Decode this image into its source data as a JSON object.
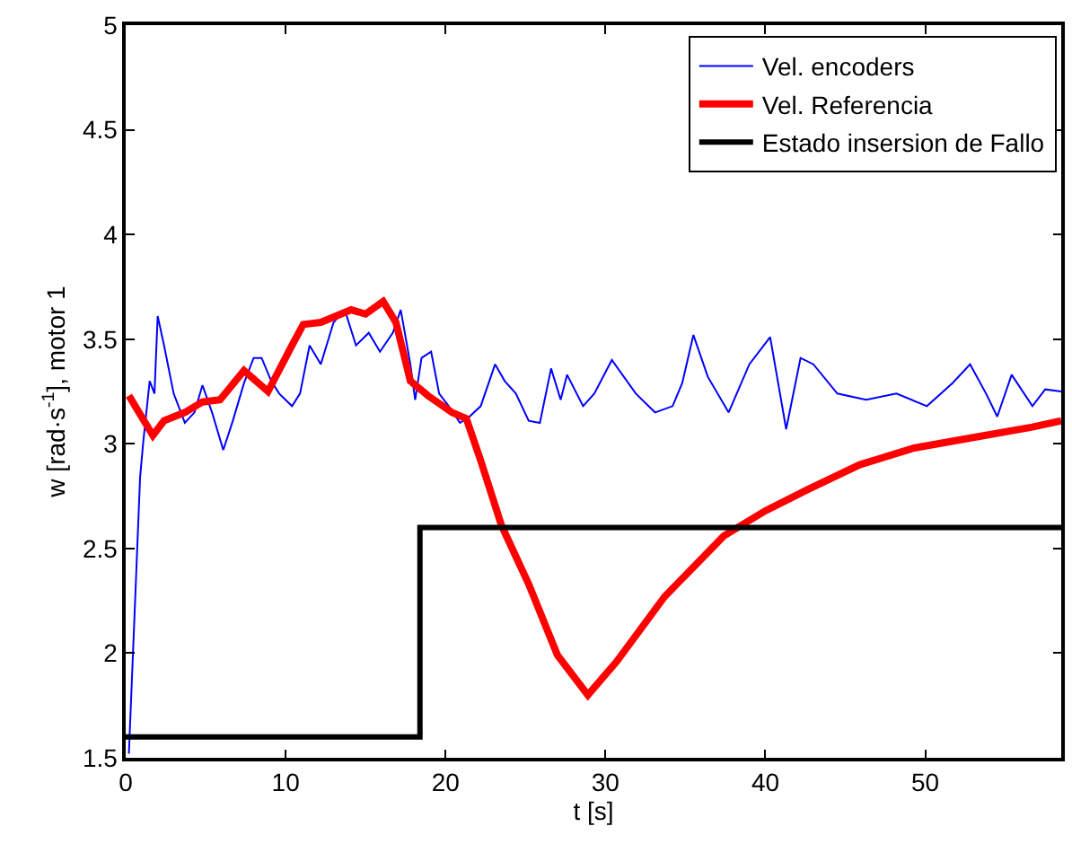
{
  "chart_data": {
    "type": "line",
    "xlabel": "t [s]",
    "ylabel": "w [rad·s$^{-1}$], motor 1",
    "xlim": [
      0,
      58.5
    ],
    "ylim": [
      1.5,
      5
    ],
    "xticks": [
      0,
      10,
      20,
      30,
      40,
      50
    ],
    "yticks": [
      1.5,
      2,
      2.5,
      3,
      3.5,
      4,
      4.5,
      5
    ],
    "legend": "top right",
    "marker": "none",
    "line_style": "solid",
    "series": [
      {
        "name": "Vel. encoders",
        "color": "#0000ff",
        "x": [
          0.2,
          0.6,
          0.9,
          1.1,
          1.5,
          1.8,
          2.0,
          2.4,
          3.0,
          3.7,
          4.3,
          4.8,
          5.4,
          6.1,
          6.7,
          7.4,
          8.0,
          8.5,
          9.1,
          9.6,
          10.4,
          10.9,
          11.5,
          12.2,
          13.0,
          13.7,
          14.4,
          15.2,
          15.9,
          16.7,
          17.2,
          17.8,
          18.1,
          18.5,
          19.1,
          19.6,
          20.2,
          20.9,
          21.5,
          22.2,
          23.1,
          23.7,
          24.4,
          25.2,
          25.9,
          26.6,
          27.2,
          27.6,
          28.6,
          29.3,
          30.4,
          31.9,
          33.1,
          34.2,
          34.8,
          35.5,
          36.4,
          37.7,
          39.0,
          40.3,
          40.8,
          41.3,
          42.2,
          43.0,
          44.5,
          46.3,
          48.2,
          50.1,
          51.7,
          52.8,
          53.8,
          54.5,
          55.4,
          56.7,
          57.5,
          58.5
        ],
        "values": [
          1.52,
          2.27,
          2.84,
          3.01,
          3.3,
          3.24,
          3.61,
          3.47,
          3.24,
          3.1,
          3.15,
          3.28,
          3.15,
          2.97,
          3.11,
          3.29,
          3.41,
          3.41,
          3.3,
          3.24,
          3.18,
          3.24,
          3.47,
          3.38,
          3.58,
          3.64,
          3.47,
          3.53,
          3.44,
          3.53,
          3.64,
          3.38,
          3.21,
          3.41,
          3.44,
          3.24,
          3.18,
          3.1,
          3.13,
          3.18,
          3.38,
          3.3,
          3.24,
          3.11,
          3.1,
          3.36,
          3.21,
          3.33,
          3.18,
          3.24,
          3.4,
          3.24,
          3.15,
          3.18,
          3.29,
          3.52,
          3.32,
          3.15,
          3.38,
          3.51,
          3.29,
          3.07,
          3.41,
          3.38,
          3.24,
          3.21,
          3.24,
          3.18,
          3.29,
          3.38,
          3.24,
          3.13,
          3.33,
          3.18,
          3.26,
          3.25
        ]
      },
      {
        "name": "Vel. Referencia",
        "color": "#ff0000",
        "x": [
          0.2,
          1.7,
          2.4,
          3.7,
          4.8,
          5.9,
          7.4,
          8.9,
          10.4,
          11.1,
          12.2,
          14.1,
          15.0,
          16.1,
          16.9,
          17.8,
          18.9,
          20.4,
          21.3,
          22.2,
          23.5,
          25.2,
          27.0,
          28.9,
          30.7,
          33.7,
          37.4,
          40.0,
          42.6,
          45.9,
          49.3,
          53.0,
          56.7,
          58.5
        ],
        "values": [
          3.23,
          3.04,
          3.11,
          3.15,
          3.2,
          3.21,
          3.35,
          3.25,
          3.47,
          3.57,
          3.58,
          3.64,
          3.62,
          3.68,
          3.58,
          3.3,
          3.23,
          3.15,
          3.12,
          2.92,
          2.61,
          2.33,
          1.99,
          1.8,
          1.96,
          2.27,
          2.56,
          2.68,
          2.78,
          2.9,
          2.98,
          3.03,
          3.08,
          3.11
        ]
      },
      {
        "name": "Estado insersion de Fallo",
        "color": "#000000",
        "type": "step",
        "x": [
          0,
          18.4,
          58.5
        ],
        "values": [
          1.6,
          2.6,
          2.6
        ]
      }
    ]
  }
}
